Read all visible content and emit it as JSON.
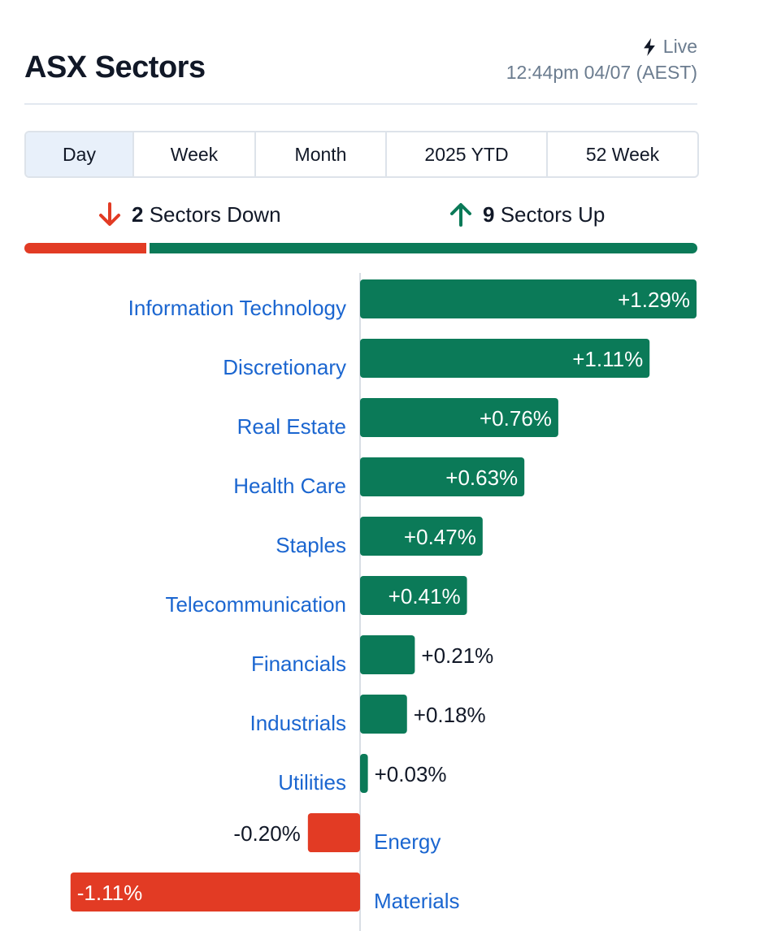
{
  "header": {
    "title": "ASX Sectors",
    "live_label": "Live",
    "timestamp": "12:44pm 04/07 (AEST)"
  },
  "tabs": [
    {
      "label": "Day",
      "active": true
    },
    {
      "label": "Week",
      "active": false
    },
    {
      "label": "Month",
      "active": false
    },
    {
      "label": "2025 YTD",
      "active": false
    },
    {
      "label": "52 Week",
      "active": false
    }
  ],
  "breadth": {
    "down_count": "2",
    "down_label": "Sectors Down",
    "up_count": "9",
    "up_label": "Sectors Up"
  },
  "colors": {
    "up": "#0b7a58",
    "down": "#e23b24",
    "label": "#1b66d0"
  },
  "chart_data": {
    "type": "bar",
    "orientation": "horizontal",
    "categories": [
      "Information Technology",
      "Discretionary",
      "Real Estate",
      "Health Care",
      "Staples",
      "Telecommunication",
      "Financials",
      "Industrials",
      "Utilities",
      "Energy",
      "Materials"
    ],
    "values": [
      1.29,
      1.11,
      0.76,
      0.63,
      0.47,
      0.41,
      0.21,
      0.18,
      0.03,
      -0.2,
      -1.11
    ],
    "labels": [
      "+1.29%",
      "+1.11%",
      "+0.76%",
      "+0.63%",
      "+0.47%",
      "+0.41%",
      "+0.21%",
      "+0.18%",
      "+0.03%",
      "-0.20%",
      "-1.11%"
    ],
    "unit": "%"
  }
}
